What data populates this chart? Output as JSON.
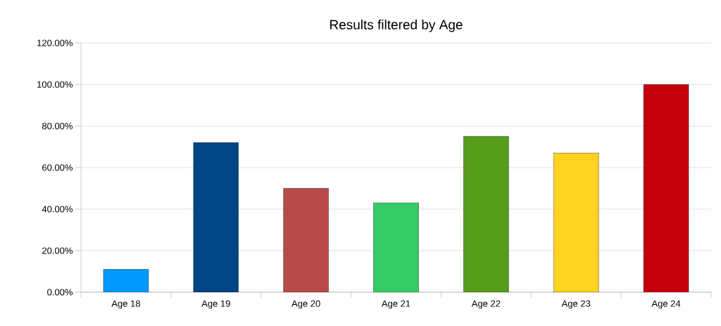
{
  "chart_data": {
    "type": "bar",
    "title": "Results filtered by Age",
    "categories": [
      "Age 18",
      "Age 19",
      "Age 20",
      "Age 21",
      "Age 22",
      "Age 23",
      "Age 24"
    ],
    "values": [
      11,
      72,
      50,
      43,
      75,
      67,
      100
    ],
    "colors": [
      "#0099ff",
      "#004586",
      "#b84b48",
      "#33cc66",
      "#579d1c",
      "#ffd320",
      "#c5000b"
    ],
    "ylim": [
      0,
      120
    ],
    "yticks": [
      {
        "value": 0,
        "label": "0.00%"
      },
      {
        "value": 20,
        "label": "20.00%"
      },
      {
        "value": 40,
        "label": "40.00%"
      },
      {
        "value": 60,
        "label": "60.00%"
      },
      {
        "value": 80,
        "label": "80.00%"
      },
      {
        "value": 100,
        "label": "100.00%"
      },
      {
        "value": 120,
        "label": "120.00%"
      }
    ],
    "grid": "y"
  }
}
